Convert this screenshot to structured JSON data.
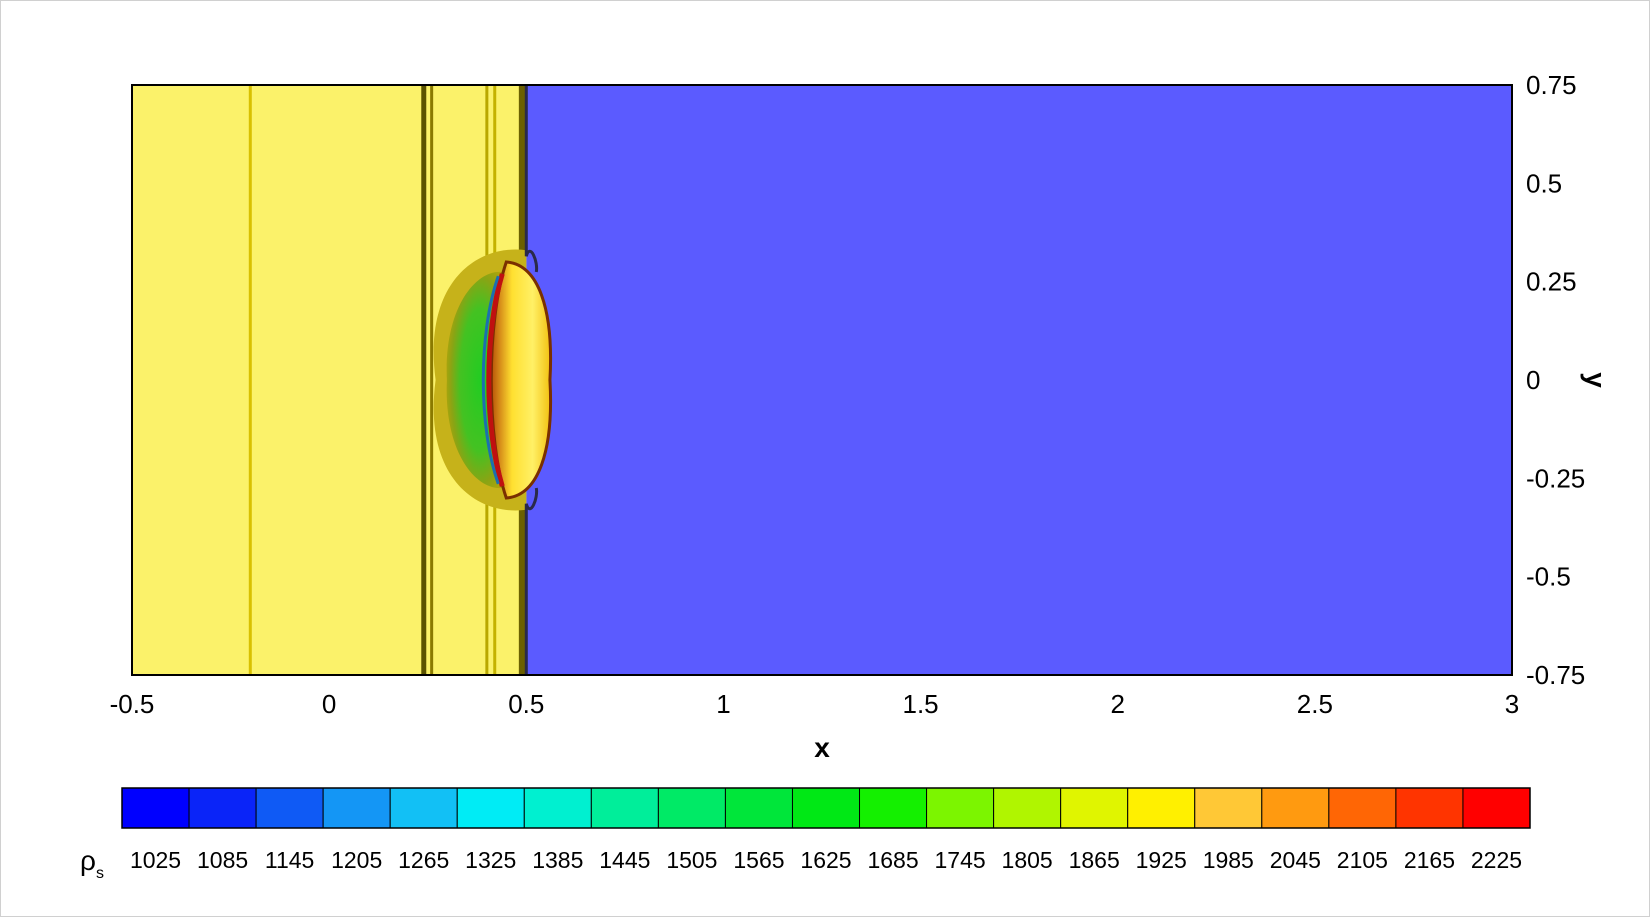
{
  "chart_data": {
    "type": "heatmap",
    "title": "",
    "xlabel": "x",
    "ylabel": "y",
    "xlim": [
      -0.5,
      3
    ],
    "ylim": [
      -0.75,
      0.75
    ],
    "x_ticks": [
      "-0.5",
      "0",
      "0.5",
      "1",
      "1.5",
      "2",
      "2.5",
      "3"
    ],
    "x_tick_values": [
      -0.5,
      0,
      0.5,
      1,
      1.5,
      2,
      2.5,
      3
    ],
    "y_ticks": [
      "0.75",
      "0.5",
      "0.25",
      "0",
      "-0.25",
      "-0.5",
      "-0.75"
    ],
    "y_tick_values": [
      0.75,
      0.5,
      0.25,
      0,
      -0.25,
      -0.5,
      -0.75
    ],
    "y_axis_side": "right",
    "field": {
      "background_value": 1025,
      "shocked_region": {
        "x_range": [
          -0.5,
          0.5
        ],
        "value": 1925
      },
      "vertical_lines_x": [
        -0.2,
        0.24,
        0.26,
        0.4,
        0.42,
        0.49
      ],
      "bubble": {
        "center_x": 0.4,
        "center_y": 0,
        "semi_width_x": 0.13,
        "semi_height_y": 0.33,
        "core_value": 1625,
        "rim_value": 1985
      },
      "interface": {
        "x": 0.5,
        "bulge_x": 0.56,
        "bulge_half_height_y": 0.3,
        "rim_value": 2105
      }
    },
    "colorbar": {
      "label": "ρ",
      "label_subscript": "s",
      "ticks": [
        "1025",
        "1085",
        "1145",
        "1205",
        "1265",
        "1325",
        "1385",
        "1445",
        "1505",
        "1565",
        "1625",
        "1685",
        "1745",
        "1805",
        "1865",
        "1925",
        "1985",
        "2045",
        "2105",
        "2165",
        "2225"
      ],
      "colors": [
        "#0000ff",
        "#0a24f8",
        "#0f5af5",
        "#1496f5",
        "#12c0f5",
        "#00ecf5",
        "#00f0d0",
        "#00ee9a",
        "#00ea66",
        "#00e63a",
        "#00e815",
        "#14f000",
        "#7cf500",
        "#b0f500",
        "#e0f500",
        "#fff000",
        "#ffc836",
        "#ff9a10",
        "#ff6605",
        "#ff3400",
        "#ff0000"
      ],
      "layout": "horizontal-bottom"
    }
  }
}
